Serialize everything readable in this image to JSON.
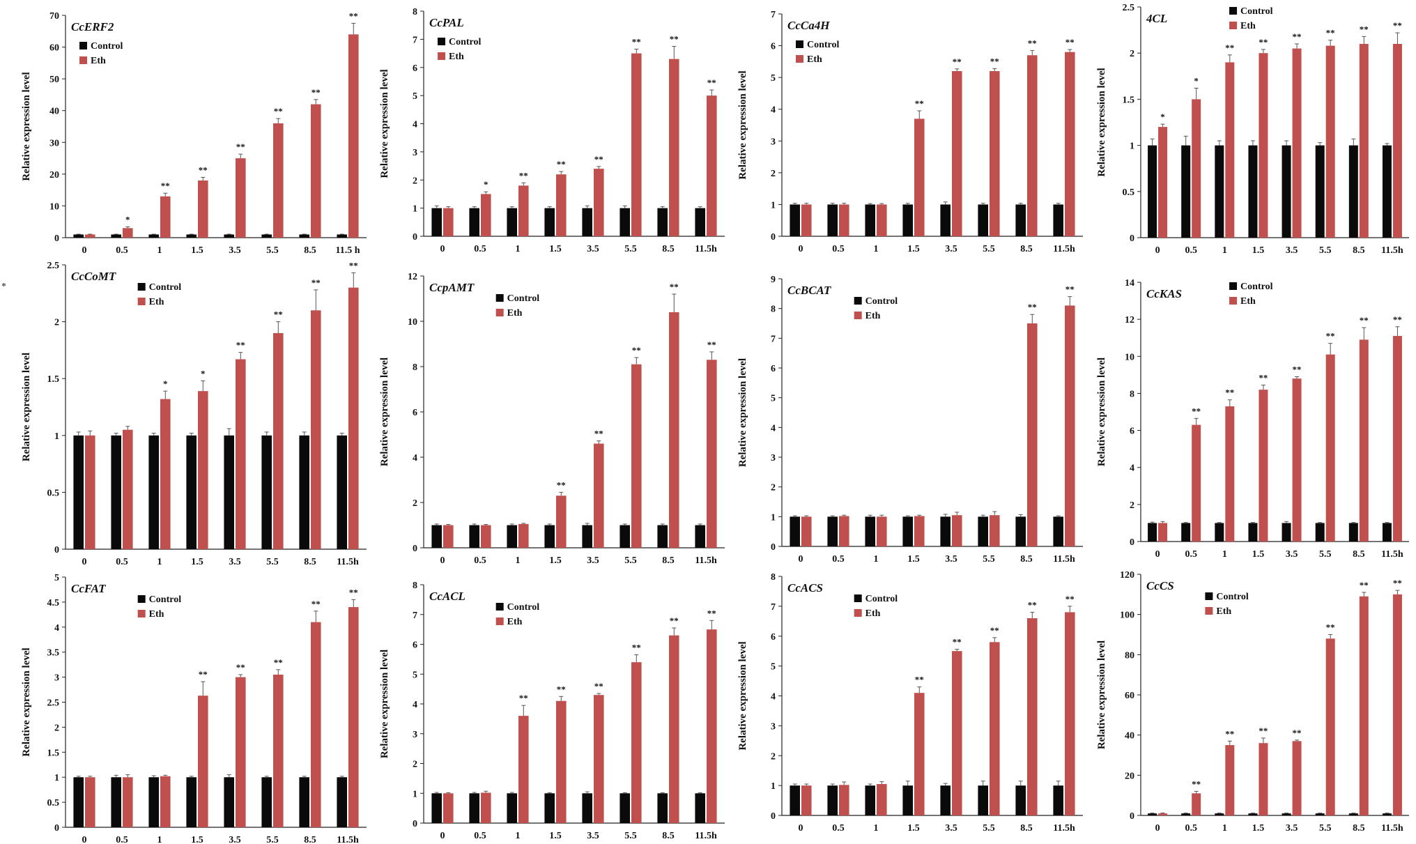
{
  "figure": {
    "legend_labels": [
      "Control",
      "Eth"
    ],
    "colors": {
      "control": "#0a0a0a",
      "eth": "#c0504d",
      "axis": "#222222",
      "error": "#555555"
    },
    "stray_mark": "*"
  },
  "chart_data": [
    {
      "type": "bar",
      "title": "CcERF2",
      "ylabel": "Relative expression level",
      "ylim": [
        0,
        70
      ],
      "yticks": [
        0,
        10,
        20,
        30,
        40,
        50,
        60,
        70
      ],
      "categories": [
        "0",
        "0.5",
        "1",
        "1.5",
        "3.5",
        "5.5",
        "8.5",
        "11.5 h"
      ],
      "legend_position": "top-left",
      "series": [
        {
          "name": "Control",
          "values": [
            1,
            1,
            1,
            1,
            1,
            1,
            1,
            1
          ],
          "errors": [
            0.1,
            0.1,
            0.1,
            0.1,
            0.1,
            0.1,
            0.1,
            0.1
          ]
        },
        {
          "name": "Eth",
          "values": [
            1,
            3,
            13,
            18,
            25,
            36,
            42,
            64
          ],
          "errors": [
            0.1,
            0.4,
            1,
            1,
            1.3,
            1.5,
            1.5,
            3.5
          ]
        }
      ],
      "significance": [
        "",
        "*",
        "**",
        "**",
        "**",
        "**",
        "**",
        "**"
      ]
    },
    {
      "type": "bar",
      "title": "CcPAL",
      "ylabel": "Relative expression level",
      "ylim": [
        0,
        8
      ],
      "yticks": [
        0,
        1,
        2,
        3,
        4,
        5,
        6,
        7,
        8
      ],
      "categories": [
        "0",
        "0.5",
        "1",
        "1.5",
        "3.5",
        "5.5",
        "8.5",
        "11.5h"
      ],
      "legend_position": "top-left",
      "series": [
        {
          "name": "Control",
          "values": [
            1,
            1,
            1,
            1,
            1,
            1,
            1,
            1
          ],
          "errors": [
            0.08,
            0.05,
            0.05,
            0.05,
            0.08,
            0.08,
            0.05,
            0.05
          ]
        },
        {
          "name": "Eth",
          "values": [
            1,
            1.5,
            1.8,
            2.2,
            2.4,
            6.5,
            6.3,
            5.0
          ],
          "errors": [
            0.05,
            0.08,
            0.1,
            0.1,
            0.08,
            0.15,
            0.45,
            0.2
          ]
        }
      ],
      "significance": [
        "",
        "*",
        "**",
        "**",
        "**",
        "**",
        "**",
        "**"
      ]
    },
    {
      "type": "bar",
      "title": "CcCa4H",
      "ylabel": "Relative expression level",
      "ylim": [
        0,
        7
      ],
      "yticks": [
        0,
        1,
        2,
        3,
        4,
        5,
        6,
        7
      ],
      "categories": [
        "0",
        "0.5",
        "1",
        "1.5",
        "3.5",
        "5.5",
        "8.5",
        "11.5h"
      ],
      "legend_position": "top-left",
      "series": [
        {
          "name": "Control",
          "values": [
            1,
            1,
            1,
            1,
            1,
            1,
            1,
            1
          ],
          "errors": [
            0.04,
            0.04,
            0.03,
            0.04,
            0.08,
            0.04,
            0.04,
            0.04
          ]
        },
        {
          "name": "Eth",
          "values": [
            1,
            1,
            1,
            3.7,
            5.2,
            5.2,
            5.7,
            5.8
          ],
          "errors": [
            0.04,
            0.04,
            0.03,
            0.25,
            0.07,
            0.08,
            0.15,
            0.08
          ]
        }
      ],
      "significance": [
        "",
        "",
        "",
        "**",
        "**",
        "**",
        "**",
        "**"
      ]
    },
    {
      "type": "bar",
      "title": "4CL",
      "ylabel": "Relative expression level",
      "ylim": [
        0,
        2.5
      ],
      "yticks": [
        0,
        0.5,
        1,
        1.5,
        2,
        2.5
      ],
      "categories": [
        "0",
        "0.5",
        "1",
        "1.5",
        "3.5",
        "5.5",
        "8.5",
        "11.5h"
      ],
      "legend_position": "top-right",
      "series": [
        {
          "name": "Control",
          "values": [
            1,
            1,
            1,
            1,
            1,
            1,
            1,
            1
          ],
          "errors": [
            0.07,
            0.1,
            0.05,
            0.05,
            0.05,
            0.03,
            0.07,
            0.02
          ]
        },
        {
          "name": "Eth",
          "values": [
            1.2,
            1.5,
            1.9,
            2.0,
            2.05,
            2.08,
            2.1,
            2.1
          ],
          "errors": [
            0.03,
            0.12,
            0.08,
            0.04,
            0.05,
            0.06,
            0.08,
            0.12
          ]
        }
      ],
      "significance": [
        "*",
        "*",
        "**",
        "**",
        "**",
        "**",
        "**",
        "**"
      ]
    },
    {
      "type": "bar",
      "title": "CcCoMT",
      "ylabel": "Relative expression level",
      "ylim": [
        0,
        2.5
      ],
      "yticks": [
        0,
        0.5,
        1,
        1.5,
        2,
        2.5
      ],
      "categories": [
        "0",
        "0.5",
        "1",
        "1.5",
        "3.5",
        "5.5",
        "8.5",
        "11.5h"
      ],
      "legend_position": "top-center",
      "series": [
        {
          "name": "Control",
          "values": [
            1,
            1,
            1,
            1,
            1,
            1,
            1,
            1
          ],
          "errors": [
            0.03,
            0.02,
            0.02,
            0.02,
            0.06,
            0.03,
            0.03,
            0.02
          ]
        },
        {
          "name": "Eth",
          "values": [
            1,
            1.05,
            1.32,
            1.39,
            1.67,
            1.9,
            2.1,
            2.3
          ],
          "errors": [
            0.04,
            0.03,
            0.07,
            0.09,
            0.06,
            0.1,
            0.18,
            0.13
          ]
        }
      ],
      "significance": [
        "",
        "",
        "*",
        "*",
        "**",
        "**",
        "**",
        "**"
      ]
    },
    {
      "type": "bar",
      "title": "CcpAMT",
      "ylabel": "Relative expression level",
      "ylim": [
        0,
        12
      ],
      "yticks": [
        0,
        2,
        4,
        6,
        8,
        10,
        12
      ],
      "categories": [
        "0",
        "0.5",
        "1",
        "1.5",
        "3.5",
        "5.5",
        "8.5",
        "11.5h"
      ],
      "legend_position": "top-center",
      "series": [
        {
          "name": "Control",
          "values": [
            1,
            1,
            1,
            1,
            1,
            1,
            1,
            1
          ],
          "errors": [
            0.05,
            0.05,
            0.05,
            0.05,
            0.08,
            0.05,
            0.05,
            0.05
          ]
        },
        {
          "name": "Eth",
          "values": [
            1,
            1,
            1.05,
            2.3,
            4.6,
            8.1,
            10.4,
            8.3
          ],
          "errors": [
            0.03,
            0.03,
            0.03,
            0.15,
            0.12,
            0.3,
            0.8,
            0.35
          ]
        }
      ],
      "significance": [
        "",
        "",
        "",
        "**",
        "**",
        "**",
        "**",
        "**"
      ]
    },
    {
      "type": "bar",
      "title": "CcBCAT",
      "ylabel": "Relative expression level",
      "ylim": [
        0,
        9
      ],
      "yticks": [
        0,
        1,
        2,
        3,
        4,
        5,
        6,
        7,
        8,
        9
      ],
      "categories": [
        "0",
        "0.5",
        "1",
        "1.5",
        "3.5",
        "5.5",
        "8.5",
        "11.5h"
      ],
      "legend_position": "top-center",
      "series": [
        {
          "name": "Control",
          "values": [
            1,
            1,
            1,
            1,
            1,
            1,
            1,
            1
          ],
          "errors": [
            0.03,
            0.03,
            0.05,
            0.03,
            0.08,
            0.05,
            0.07,
            0.03
          ]
        },
        {
          "name": "Eth",
          "values": [
            1,
            1.02,
            1,
            1.02,
            1.05,
            1.05,
            7.5,
            8.1
          ],
          "errors": [
            0.03,
            0.03,
            0.05,
            0.03,
            0.1,
            0.12,
            0.3,
            0.3
          ]
        }
      ],
      "significance": [
        "",
        "",
        "",
        "",
        "",
        "",
        "**",
        "**"
      ]
    },
    {
      "type": "bar",
      "title": "CcKAS",
      "ylabel": "Relative expression level",
      "ylim": [
        0,
        14
      ],
      "yticks": [
        0,
        2,
        4,
        6,
        8,
        10,
        12,
        14
      ],
      "categories": [
        "0",
        "0.5",
        "1",
        "1.5",
        "3.5",
        "5.5",
        "8.5",
        "11.5h"
      ],
      "legend_position": "top-right",
      "series": [
        {
          "name": "Control",
          "values": [
            1,
            1,
            1,
            1,
            1,
            1,
            1,
            1
          ],
          "errors": [
            0.05,
            0.03,
            0.03,
            0.03,
            0.08,
            0.03,
            0.03,
            0.03
          ]
        },
        {
          "name": "Eth",
          "values": [
            1,
            6.3,
            7.3,
            8.2,
            8.8,
            10.1,
            10.9,
            11.1
          ],
          "errors": [
            0.08,
            0.35,
            0.35,
            0.25,
            0.1,
            0.6,
            0.65,
            0.5
          ]
        }
      ],
      "significance": [
        "",
        "**",
        "**",
        "**",
        "**",
        "**",
        "**",
        "**"
      ]
    },
    {
      "type": "bar",
      "title": "CcFAT",
      "ylabel": "Relative expression level",
      "ylim": [
        0,
        5
      ],
      "yticks": [
        0,
        0.5,
        1,
        1.5,
        2,
        2.5,
        3,
        3.5,
        4,
        4.5,
        5
      ],
      "categories": [
        "0",
        "0.5",
        "1",
        "1.5",
        "3.5",
        "5.5",
        "8.5",
        "11.5h"
      ],
      "legend_position": "top-center",
      "series": [
        {
          "name": "Control",
          "values": [
            1,
            1,
            1,
            1,
            1,
            1,
            1,
            1
          ],
          "errors": [
            0.02,
            0.04,
            0.03,
            0.02,
            0.05,
            0.02,
            0.02,
            0.02
          ]
        },
        {
          "name": "Eth",
          "values": [
            1,
            1,
            1.02,
            2.63,
            3.0,
            3.05,
            4.1,
            4.4
          ],
          "errors": [
            0.02,
            0.05,
            0.02,
            0.28,
            0.05,
            0.1,
            0.22,
            0.15
          ]
        }
      ],
      "significance": [
        "",
        "",
        "",
        "**",
        "**",
        "**",
        "**",
        "**"
      ]
    },
    {
      "type": "bar",
      "title": "CcACL",
      "ylabel": "Relative expression level",
      "ylim": [
        0,
        8
      ],
      "yticks": [
        0,
        1,
        2,
        3,
        4,
        5,
        6,
        7,
        8
      ],
      "categories": [
        "0",
        "0.5",
        "1",
        "1.5",
        "3.5",
        "5.5",
        "8.5",
        "11.5h"
      ],
      "legend_position": "top-center",
      "series": [
        {
          "name": "Control",
          "values": [
            1,
            1,
            1,
            1,
            1,
            1,
            1,
            1
          ],
          "errors": [
            0.03,
            0.03,
            0.03,
            0.02,
            0.05,
            0.02,
            0.02,
            0.02
          ]
        },
        {
          "name": "Eth",
          "values": [
            1,
            1.02,
            3.6,
            4.1,
            4.3,
            5.4,
            6.3,
            6.5
          ],
          "errors": [
            0.02,
            0.05,
            0.35,
            0.15,
            0.05,
            0.25,
            0.25,
            0.3
          ]
        }
      ],
      "significance": [
        "",
        "",
        "**",
        "**",
        "**",
        "**",
        "**",
        "**"
      ]
    },
    {
      "type": "bar",
      "title": "CcACS",
      "ylabel": "Relative expression level",
      "ylim": [
        0,
        8
      ],
      "yticks": [
        0,
        1,
        2,
        3,
        4,
        5,
        6,
        7,
        8
      ],
      "categories": [
        "0",
        "0.5",
        "1",
        "1.5",
        "3.5",
        "5.5",
        "8.5",
        "11.5h"
      ],
      "legend_position": "top-center",
      "series": [
        {
          "name": "Control",
          "values": [
            1,
            1,
            1,
            1,
            1,
            1,
            1,
            1
          ],
          "errors": [
            0.05,
            0.05,
            0.05,
            0.15,
            0.07,
            0.15,
            0.15,
            0.15
          ]
        },
        {
          "name": "Eth",
          "values": [
            1,
            1.02,
            1.05,
            4.1,
            5.5,
            5.8,
            6.6,
            6.8
          ],
          "errors": [
            0.05,
            0.1,
            0.08,
            0.2,
            0.06,
            0.15,
            0.2,
            0.2
          ]
        }
      ],
      "significance": [
        "",
        "",
        "",
        "**",
        "**",
        "**",
        "**",
        "**"
      ]
    },
    {
      "type": "bar",
      "title": "CcCS",
      "ylabel": "Relative expression level",
      "ylim": [
        0,
        120
      ],
      "yticks": [
        0,
        20,
        40,
        60,
        80,
        100,
        120
      ],
      "categories": [
        "0",
        "0.5",
        "1",
        "1.5",
        "3.5",
        "5.5",
        "8.5",
        "11.5h"
      ],
      "legend_position": "top-center",
      "series": [
        {
          "name": "Control",
          "values": [
            1,
            1,
            1,
            1,
            1,
            1,
            1,
            1
          ],
          "errors": [
            0.2,
            0.2,
            0.2,
            0.2,
            0.2,
            0.2,
            0.2,
            0.2
          ]
        },
        {
          "name": "Eth",
          "values": [
            1,
            11,
            35,
            36,
            37,
            88,
            109,
            110
          ],
          "errors": [
            0.2,
            1,
            2,
            2.5,
            0.5,
            2,
            2,
            2
          ]
        }
      ],
      "significance": [
        "",
        "**",
        "**",
        "**",
        "**",
        "**",
        "**",
        "**"
      ]
    }
  ]
}
